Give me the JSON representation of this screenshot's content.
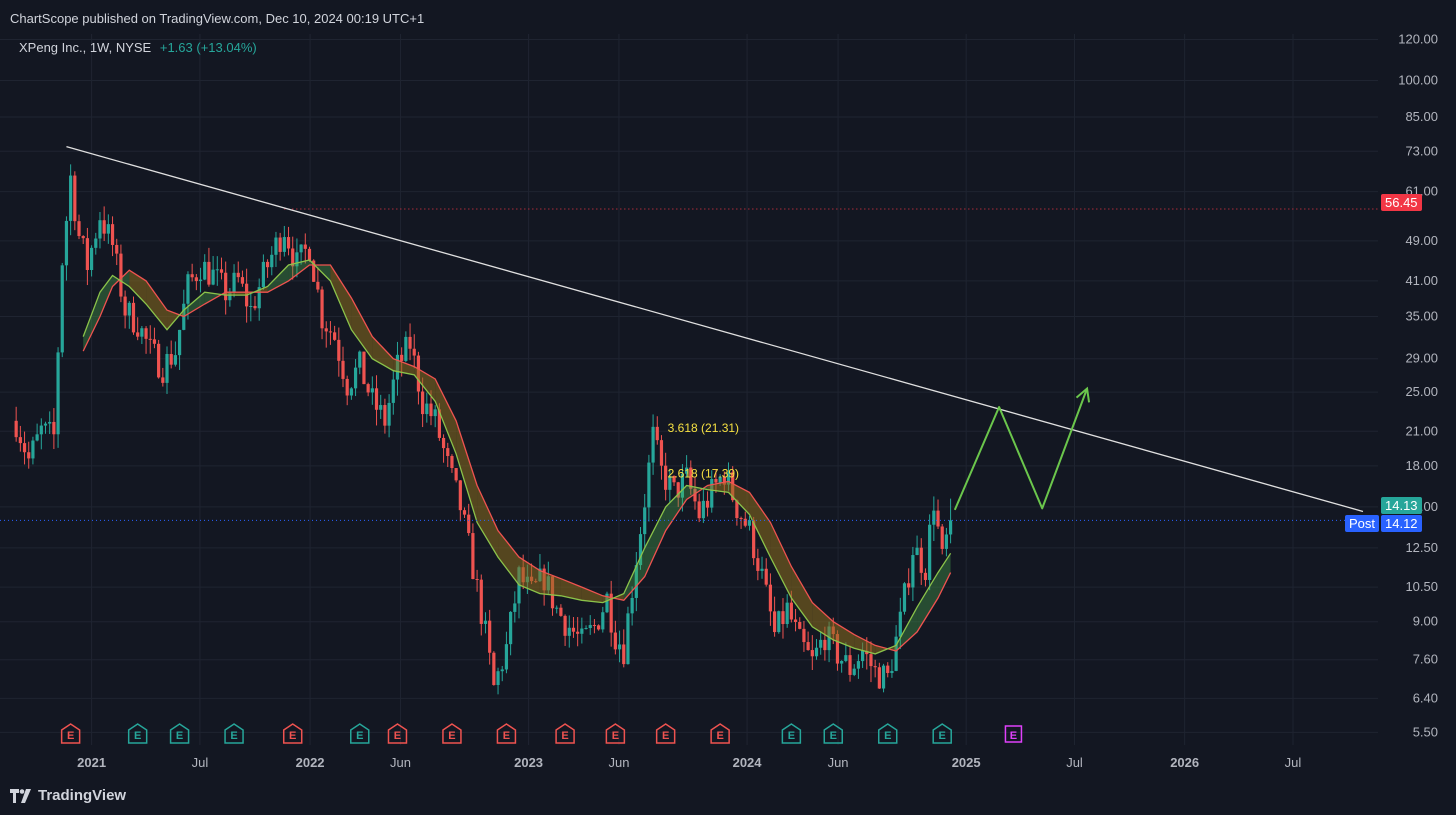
{
  "header": {
    "published_by": "ChartScope published on TradingView.com, Dec 10, 2024 00:19 UTC+1"
  },
  "symbol": {
    "name": "XPeng Inc., 1W, NYSE",
    "change": "+1.63 (+13.04%)"
  },
  "footer": {
    "brand": "TradingView"
  },
  "colors": {
    "background": "#131722",
    "up": "#26a69a",
    "down": "#ef5350",
    "ma_fast": "#8bc34a",
    "ma_slow": "#ef5350",
    "band_up": "#4caf50",
    "band_down": "#8d6e1e",
    "trendline": "#e0e0e0",
    "projection": "#6bc64c",
    "resistance": "#f23645",
    "current_line": "#2962ff",
    "fib_text": "#f5e042",
    "earnings": "#ef5350",
    "earnings_up": "#26a69a",
    "earnings_future": "#e040fb"
  },
  "chart_data": {
    "type": "candlestick",
    "scale": "log",
    "ylim": [
      5.2,
      123
    ],
    "xlim": [
      "2020-08-01",
      "2026-11-20"
    ],
    "y_ticks": [
      "120.00",
      "100.00",
      "85.00",
      "73.00",
      "61.00",
      "49.00",
      "41.00",
      "35.00",
      "29.00",
      "25.00",
      "21.00",
      "18.00",
      "15.00",
      "12.50",
      "10.50",
      "9.00",
      "7.60",
      "6.40",
      "5.50"
    ],
    "x_ticks": [
      {
        "date": "2021-01-01",
        "label": "2021",
        "bold": true
      },
      {
        "date": "2021-07-01",
        "label": "Jul",
        "bold": false
      },
      {
        "date": "2022-01-01",
        "label": "2022",
        "bold": true
      },
      {
        "date": "2022-06-01",
        "label": "Jun",
        "bold": false
      },
      {
        "date": "2023-01-01",
        "label": "2023",
        "bold": true
      },
      {
        "date": "2023-06-01",
        "label": "Jun",
        "bold": false
      },
      {
        "date": "2024-01-01",
        "label": "2024",
        "bold": true
      },
      {
        "date": "2024-06-01",
        "label": "Jun",
        "bold": false
      },
      {
        "date": "2025-01-01",
        "label": "2025",
        "bold": true
      },
      {
        "date": "2025-07-01",
        "label": "Jul",
        "bold": false
      },
      {
        "date": "2026-01-01",
        "label": "2026",
        "bold": true
      },
      {
        "date": "2026-07-01",
        "label": "Jul",
        "bold": false
      }
    ],
    "price_path": [
      [
        "2020-08-28",
        22.0
      ],
      [
        "2020-09-18",
        18.5
      ],
      [
        "2020-10-09",
        21.0
      ],
      [
        "2020-10-30",
        20.5
      ],
      [
        "2020-11-13",
        45.0
      ],
      [
        "2020-11-27",
        65.0
      ],
      [
        "2020-12-11",
        50.0
      ],
      [
        "2020-12-25",
        44.0
      ],
      [
        "2021-01-15",
        55.0
      ],
      [
        "2021-02-05",
        48.0
      ],
      [
        "2021-02-26",
        36.0
      ],
      [
        "2021-03-19",
        34.0
      ],
      [
        "2021-04-09",
        30.0
      ],
      [
        "2021-04-30",
        28.0
      ],
      [
        "2021-05-21",
        30.0
      ],
      [
        "2021-06-11",
        40.0
      ],
      [
        "2021-07-02",
        44.0
      ],
      [
        "2021-07-23",
        42.0
      ],
      [
        "2021-08-13",
        39.0
      ],
      [
        "2021-09-03",
        41.0
      ],
      [
        "2021-09-24",
        36.0
      ],
      [
        "2021-10-15",
        42.0
      ],
      [
        "2021-11-05",
        48.0
      ],
      [
        "2021-11-19",
        52.0
      ],
      [
        "2021-12-10",
        44.0
      ],
      [
        "2021-12-31",
        48.0
      ],
      [
        "2022-01-21",
        35.0
      ],
      [
        "2022-02-11",
        32.0
      ],
      [
        "2022-03-04",
        26.0
      ],
      [
        "2022-03-25",
        28.0
      ],
      [
        "2022-04-15",
        24.0
      ],
      [
        "2022-05-06",
        22.0
      ],
      [
        "2022-05-27",
        28.0
      ],
      [
        "2022-06-17",
        31.0
      ],
      [
        "2022-07-08",
        24.0
      ],
      [
        "2022-07-29",
        22.0
      ],
      [
        "2022-08-19",
        18.0
      ],
      [
        "2022-09-09",
        15.0
      ],
      [
        "2022-09-30",
        11.5
      ],
      [
        "2022-10-21",
        8.5
      ],
      [
        "2022-11-04",
        6.7
      ],
      [
        "2022-11-25",
        8.0
      ],
      [
        "2022-12-16",
        11.0
      ],
      [
        "2023-01-06",
        10.2
      ],
      [
        "2023-01-27",
        11.0
      ],
      [
        "2023-02-17",
        9.5
      ],
      [
        "2023-03-10",
        8.8
      ],
      [
        "2023-03-31",
        8.2
      ],
      [
        "2023-04-21",
        8.8
      ],
      [
        "2023-05-12",
        10.0
      ],
      [
        "2023-05-26",
        8.5
      ],
      [
        "2023-06-09",
        8.0
      ],
      [
        "2023-06-30",
        12.0
      ],
      [
        "2023-07-14",
        15.5
      ],
      [
        "2023-07-28",
        20.5
      ],
      [
        "2023-08-11",
        17.5
      ],
      [
        "2023-09-01",
        16.0
      ],
      [
        "2023-09-22",
        17.0
      ],
      [
        "2023-10-13",
        14.5
      ],
      [
        "2023-11-03",
        16.0
      ],
      [
        "2023-11-24",
        17.5
      ],
      [
        "2023-12-15",
        15.0
      ],
      [
        "2024-01-05",
        13.5
      ],
      [
        "2024-01-26",
        11.0
      ],
      [
        "2024-02-16",
        8.5
      ],
      [
        "2024-03-08",
        9.5
      ],
      [
        "2024-03-29",
        8.2
      ],
      [
        "2024-04-19",
        7.5
      ],
      [
        "2024-05-10",
        8.5
      ],
      [
        "2024-05-31",
        7.8
      ],
      [
        "2024-06-21",
        7.3
      ],
      [
        "2024-07-12",
        7.9
      ],
      [
        "2024-08-02",
        7.2
      ],
      [
        "2024-08-23",
        7.0
      ],
      [
        "2024-09-13",
        9.0
      ],
      [
        "2024-10-04",
        12.5
      ],
      [
        "2024-10-25",
        11.5
      ],
      [
        "2024-11-08",
        15.5
      ],
      [
        "2024-11-22",
        11.8
      ],
      [
        "2024-12-06",
        14.13
      ]
    ],
    "ma_fast": [
      [
        "2020-12-18",
        32
      ],
      [
        "2021-01-15",
        39
      ],
      [
        "2021-02-05",
        42
      ],
      [
        "2021-03-05",
        40
      ],
      [
        "2021-04-02",
        37
      ],
      [
        "2021-05-07",
        33
      ],
      [
        "2021-06-04",
        36
      ],
      [
        "2021-07-09",
        39
      ],
      [
        "2021-08-13",
        38.5
      ],
      [
        "2021-09-17",
        38.5
      ],
      [
        "2021-10-22",
        40
      ],
      [
        "2021-11-26",
        44
      ],
      [
        "2021-12-31",
        45
      ],
      [
        "2022-02-04",
        41
      ],
      [
        "2022-03-11",
        33
      ],
      [
        "2022-04-15",
        29
      ],
      [
        "2022-05-20",
        27.5
      ],
      [
        "2022-06-24",
        27
      ],
      [
        "2022-07-29",
        24
      ],
      [
        "2022-09-02",
        19
      ],
      [
        "2022-10-07",
        14
      ],
      [
        "2022-11-11",
        12
      ],
      [
        "2022-12-16",
        10.6
      ],
      [
        "2023-01-20",
        10.2
      ],
      [
        "2023-02-24",
        10.1
      ],
      [
        "2023-03-31",
        9.9
      ],
      [
        "2023-05-05",
        9.8
      ],
      [
        "2023-06-09",
        10.2
      ],
      [
        "2023-07-14",
        12.5
      ],
      [
        "2023-08-18",
        15
      ],
      [
        "2023-09-22",
        16.5
      ],
      [
        "2023-10-27",
        16.2
      ],
      [
        "2023-12-01",
        16
      ],
      [
        "2024-01-05",
        14.5
      ],
      [
        "2024-02-09",
        12
      ],
      [
        "2024-03-15",
        10
      ],
      [
        "2024-04-19",
        8.8
      ],
      [
        "2024-05-24",
        8.3
      ],
      [
        "2024-06-28",
        8
      ],
      [
        "2024-08-02",
        7.8
      ],
      [
        "2024-09-06",
        8.1
      ],
      [
        "2024-10-11",
        9.6
      ],
      [
        "2024-11-15",
        11.2
      ],
      [
        "2024-12-06",
        12.2
      ]
    ],
    "ma_slow": [
      [
        "2020-12-18",
        30
      ],
      [
        "2021-01-15",
        35
      ],
      [
        "2021-02-05",
        40
      ],
      [
        "2021-03-05",
        43
      ],
      [
        "2021-04-02",
        41
      ],
      [
        "2021-05-07",
        36
      ],
      [
        "2021-06-04",
        35
      ],
      [
        "2021-07-09",
        37
      ],
      [
        "2021-08-13",
        39
      ],
      [
        "2021-09-17",
        39
      ],
      [
        "2021-10-22",
        39
      ],
      [
        "2021-11-26",
        41
      ],
      [
        "2021-12-31",
        44
      ],
      [
        "2022-02-04",
        44
      ],
      [
        "2022-03-11",
        38
      ],
      [
        "2022-04-15",
        32
      ],
      [
        "2022-05-20",
        29
      ],
      [
        "2022-06-24",
        28
      ],
      [
        "2022-07-29",
        26.5
      ],
      [
        "2022-09-02",
        22
      ],
      [
        "2022-10-07",
        16.5
      ],
      [
        "2022-11-11",
        13.5
      ],
      [
        "2022-12-16",
        12
      ],
      [
        "2023-01-20",
        11.3
      ],
      [
        "2023-02-24",
        10.9
      ],
      [
        "2023-03-31",
        10.5
      ],
      [
        "2023-05-05",
        10.1
      ],
      [
        "2023-06-09",
        9.9
      ],
      [
        "2023-07-14",
        11
      ],
      [
        "2023-08-18",
        13.5
      ],
      [
        "2023-09-22",
        15.5
      ],
      [
        "2023-10-27",
        16.5
      ],
      [
        "2023-12-01",
        16.8
      ],
      [
        "2024-01-05",
        16
      ],
      [
        "2024-02-09",
        14
      ],
      [
        "2024-03-15",
        11.5
      ],
      [
        "2024-04-19",
        9.8
      ],
      [
        "2024-05-24",
        9
      ],
      [
        "2024-06-28",
        8.5
      ],
      [
        "2024-08-02",
        8.1
      ],
      [
        "2024-09-06",
        7.9
      ],
      [
        "2024-10-11",
        8.6
      ],
      [
        "2024-11-15",
        10
      ],
      [
        "2024-12-06",
        11.2
      ]
    ],
    "trendline": [
      [
        "2020-11-20",
        74.5
      ],
      [
        "2026-11-20",
        14.7
      ]
    ],
    "projection": [
      [
        "2024-12-13",
        14.8
      ],
      [
        "2025-02-25",
        23.4
      ],
      [
        "2025-05-08",
        14.9
      ],
      [
        "2025-07-22",
        25.4
      ]
    ],
    "levels": [
      {
        "value": 56.45,
        "label": "56.45",
        "style": "resistance"
      },
      {
        "value": 14.13,
        "label": "14.13",
        "style": "current"
      }
    ],
    "post_price": {
      "label": "Post",
      "value": "14.12"
    },
    "fib_labels": [
      {
        "date": "2023-10-20",
        "value": 21.31,
        "text": "3.618 (21.31)"
      },
      {
        "date": "2023-10-20",
        "value": 17.39,
        "text": "2.618 (17.39)"
      }
    ],
    "earnings": [
      {
        "date": "2020-11-27",
        "kind": "down"
      },
      {
        "date": "2021-03-19",
        "kind": "up"
      },
      {
        "date": "2021-05-28",
        "kind": "up"
      },
      {
        "date": "2021-08-27",
        "kind": "up"
      },
      {
        "date": "2021-12-03",
        "kind": "down"
      },
      {
        "date": "2022-03-25",
        "kind": "up"
      },
      {
        "date": "2022-05-27",
        "kind": "down"
      },
      {
        "date": "2022-08-26",
        "kind": "down"
      },
      {
        "date": "2022-11-25",
        "kind": "down"
      },
      {
        "date": "2023-03-03",
        "kind": "down"
      },
      {
        "date": "2023-05-26",
        "kind": "down"
      },
      {
        "date": "2023-08-18",
        "kind": "down"
      },
      {
        "date": "2023-11-17",
        "kind": "down"
      },
      {
        "date": "2024-03-15",
        "kind": "up"
      },
      {
        "date": "2024-05-24",
        "kind": "up"
      },
      {
        "date": "2024-08-23",
        "kind": "up"
      },
      {
        "date": "2024-11-22",
        "kind": "up"
      },
      {
        "date": "2025-03-21",
        "kind": "future"
      }
    ]
  }
}
